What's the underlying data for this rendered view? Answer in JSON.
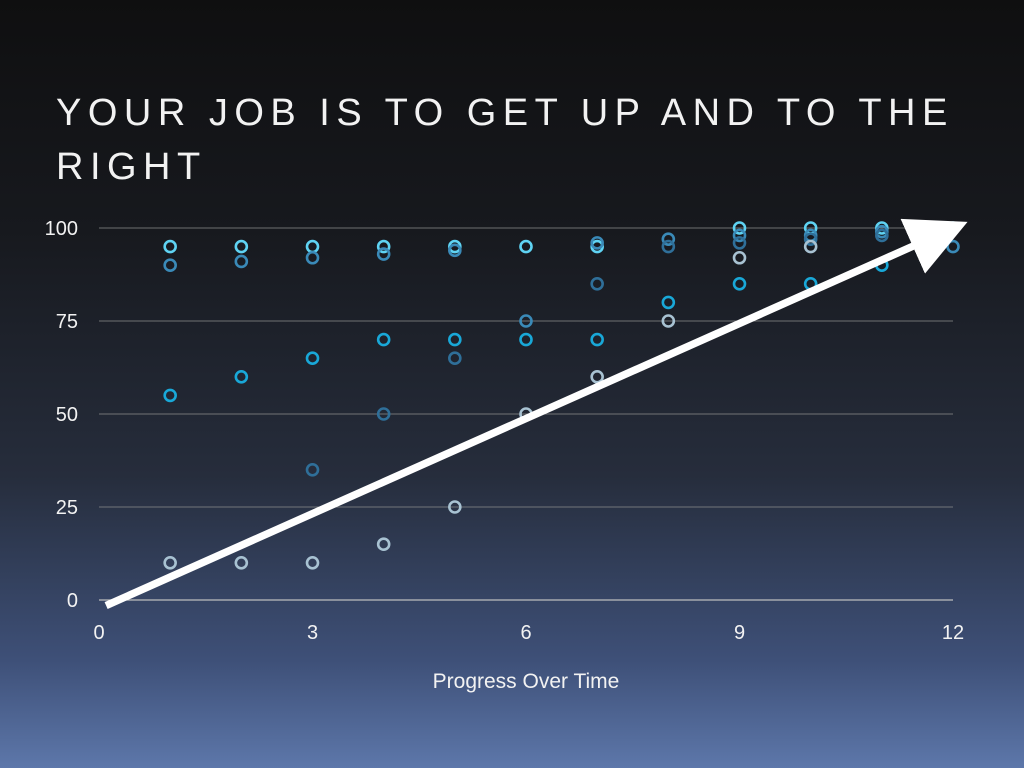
{
  "slide": {
    "title": "Your job is to get up and to the right"
  },
  "chart_data": {
    "type": "scatter",
    "title": "",
    "xlabel": "Progress Over Time",
    "ylabel": "",
    "xlim": [
      0,
      12
    ],
    "ylim": [
      0,
      100
    ],
    "x_ticks": [
      0,
      3,
      6,
      9,
      12
    ],
    "y_ticks": [
      0,
      25,
      50,
      75,
      100
    ],
    "grid": "horizontal",
    "legend": "none",
    "series": [
      {
        "color": "#5fd3f3",
        "points": [
          [
            1,
            95
          ],
          [
            2,
            95
          ],
          [
            3,
            95
          ],
          [
            4,
            95
          ],
          [
            5,
            95
          ],
          [
            6,
            95
          ],
          [
            7,
            95
          ],
          [
            9,
            100
          ],
          [
            10,
            100
          ],
          [
            11,
            100
          ],
          [
            12,
            100
          ]
        ]
      },
      {
        "color": "#3a8ab8",
        "points": [
          [
            1,
            90
          ],
          [
            2,
            91
          ],
          [
            3,
            92
          ],
          [
            4,
            93
          ],
          [
            5,
            94
          ],
          [
            6,
            75
          ],
          [
            7,
            96
          ],
          [
            8,
            97
          ],
          [
            9,
            98
          ],
          [
            10,
            98
          ],
          [
            11,
            99
          ],
          [
            12,
            95
          ]
        ]
      },
      {
        "color": "#19a8d8",
        "points": [
          [
            1,
            55
          ],
          [
            2,
            60
          ],
          [
            3,
            65
          ],
          [
            4,
            70
          ],
          [
            5,
            70
          ],
          [
            6,
            70
          ],
          [
            7,
            70
          ],
          [
            8,
            80
          ],
          [
            9,
            85
          ],
          [
            10,
            85
          ],
          [
            11,
            90
          ]
        ]
      },
      {
        "color": "#2f6f99",
        "points": [
          [
            3,
            35
          ],
          [
            4,
            50
          ],
          [
            5,
            65
          ],
          [
            7,
            85
          ],
          [
            8,
            95
          ],
          [
            9,
            96
          ],
          [
            10,
            97
          ],
          [
            11,
            98
          ]
        ]
      },
      {
        "color": "#a8c2d2",
        "points": [
          [
            1,
            10
          ],
          [
            2,
            10
          ],
          [
            3,
            10
          ],
          [
            4,
            15
          ],
          [
            5,
            25
          ],
          [
            6,
            50
          ],
          [
            7,
            60
          ],
          [
            8,
            75
          ],
          [
            9,
            92
          ],
          [
            10,
            95
          ]
        ]
      }
    ],
    "trend_arrow": {
      "from": [
        0.1,
        -1.5
      ],
      "to": [
        12,
        100
      ],
      "color": "#ffffff"
    },
    "colors": {
      "text": "#f2f2f2",
      "gridline": "#8c8c8c",
      "axis": "#bdbdbd"
    }
  }
}
